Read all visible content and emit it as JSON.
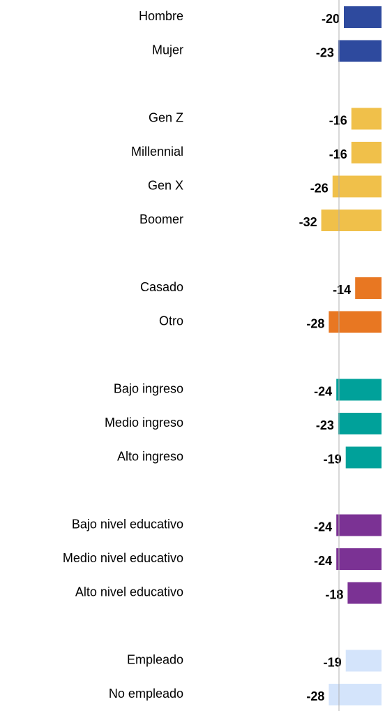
{
  "chart_data": {
    "type": "bar",
    "orientation": "horizontal",
    "categories": [
      "Hombre",
      "Mujer",
      null,
      "Gen Z",
      "Millennial",
      "Gen X",
      "Boomer",
      null,
      "Casado",
      "Otro",
      null,
      "Bajo ingreso",
      "Medio ingreso",
      "Alto ingreso",
      null,
      "Bajo nivel educativo",
      "Medio nivel educativo",
      "Alto nivel educativo",
      null,
      "Empleado",
      "No empleado"
    ],
    "values": [
      -20,
      -23,
      null,
      -16,
      -16,
      -26,
      -32,
      null,
      -14,
      -28,
      null,
      -24,
      -23,
      -19,
      null,
      -24,
      -24,
      -18,
      null,
      -19,
      -28
    ],
    "colors": [
      "#2e4a9e",
      "#2e4a9e",
      null,
      "#f0c04a",
      "#f0c04a",
      "#f0c04a",
      "#f0c04a",
      null,
      "#e87722",
      "#e87722",
      null,
      "#00a19a",
      "#00a19a",
      "#00a19a",
      null,
      "#7b3294",
      "#7b3294",
      "#7b3294",
      null,
      "#d4e4fb",
      "#d4e4fb"
    ],
    "xlim": [
      -40,
      0
    ]
  }
}
